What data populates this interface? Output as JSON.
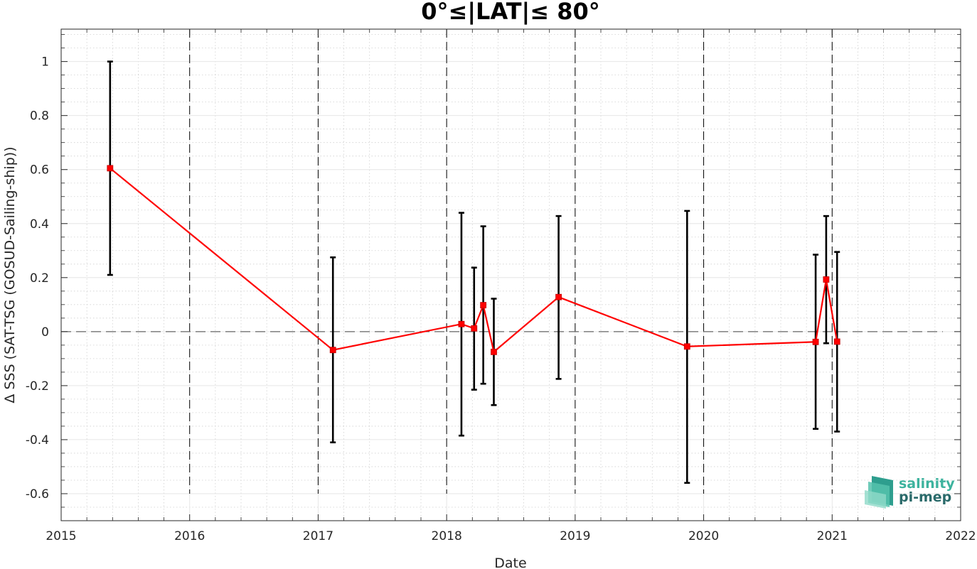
{
  "chart_data": {
    "type": "line",
    "title": "0°≤|LAT|≤ 80°",
    "xlabel": "Date",
    "ylabel": "Δ SSS (SAT-TSG (GOSUD-Sailing-ship))",
    "xlim": [
      "2015-01-01",
      "2022-01-01"
    ],
    "ylim": [
      -0.7,
      1.12
    ],
    "x_ticks": [
      "2015",
      "2016",
      "2017",
      "2018",
      "2019",
      "2020",
      "2021",
      "2022"
    ],
    "y_ticks": [
      -0.6,
      -0.4,
      -0.2,
      0,
      0.2,
      0.4,
      0.6,
      0.8,
      1
    ],
    "y_tick_labels": [
      "-0.6",
      "-0.4",
      "-0.2",
      "0",
      "0.2",
      "0.4",
      "0.6",
      "0.8",
      "1"
    ],
    "grid": true,
    "year_markers": [
      "2016",
      "2017",
      "2018",
      "2019",
      "2020",
      "2021"
    ],
    "zero_line": 0,
    "series": [
      {
        "color": "#ff0000",
        "marker": "square",
        "x": [
          "2015-05-20",
          "2017-02-12",
          "2018-02-12",
          "2018-03-20",
          "2018-04-15",
          "2018-05-15",
          "2018-11-15",
          "2019-11-15",
          "2020-11-15",
          "2020-12-15",
          "2021-01-15"
        ],
        "y": [
          0.605,
          -0.068,
          0.028,
          0.012,
          0.098,
          -0.075,
          0.128,
          -0.055,
          -0.038,
          0.193,
          -0.037
        ],
        "err_upper": [
          1.0,
          0.275,
          0.44,
          0.237,
          0.39,
          0.122,
          0.428,
          0.447,
          0.285,
          0.428,
          0.295
        ],
        "err_lower": [
          0.21,
          -0.41,
          -0.385,
          -0.215,
          -0.193,
          -0.272,
          -0.175,
          -0.56,
          -0.36,
          -0.043,
          -0.37
        ]
      }
    ],
    "error_bar_color": "#000000"
  },
  "logo": {
    "line1": "salinity",
    "line2": "pi-mep",
    "color1": "#3db39e",
    "color2": "#2a6a6a"
  }
}
